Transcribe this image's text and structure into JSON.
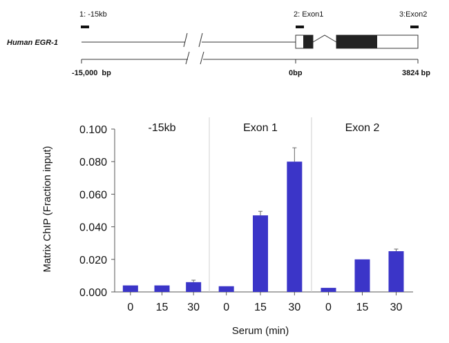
{
  "gene_diagram": {
    "gene_name": "Human EGR-1",
    "probes": [
      {
        "label": "1: -15kb"
      },
      {
        "label": "2: Exon1"
      },
      {
        "label": "3:Exon2"
      }
    ],
    "scale_labels": {
      "left": "-15,000  bp",
      "middle": "0bp",
      "right": "3824 bp"
    }
  },
  "chart_data": {
    "type": "bar",
    "ylabel": "Matrix ChIP (Fraction input)",
    "xlabel": "Serum (min)",
    "ylim": [
      0,
      0.1
    ],
    "yticks": [
      "0.000",
      "0.020",
      "0.040",
      "0.060",
      "0.080",
      "0.100"
    ],
    "bar_color": "#3b35c8",
    "panels": [
      {
        "title": "-15kb",
        "categories": [
          "0",
          "15",
          "30"
        ],
        "values": [
          0.004,
          0.004,
          0.006
        ],
        "errors": [
          0.0,
          0.0,
          0.0012
        ]
      },
      {
        "title": "Exon 1",
        "categories": [
          "0",
          "15",
          "30"
        ],
        "values": [
          0.0035,
          0.047,
          0.08
        ],
        "errors": [
          0.0,
          0.0025,
          0.0085
        ]
      },
      {
        "title": "Exon 2",
        "categories": [
          "0",
          "15",
          "30"
        ],
        "values": [
          0.0025,
          0.02,
          0.025
        ],
        "errors": [
          0.0,
          0.0,
          0.0013
        ]
      }
    ]
  }
}
